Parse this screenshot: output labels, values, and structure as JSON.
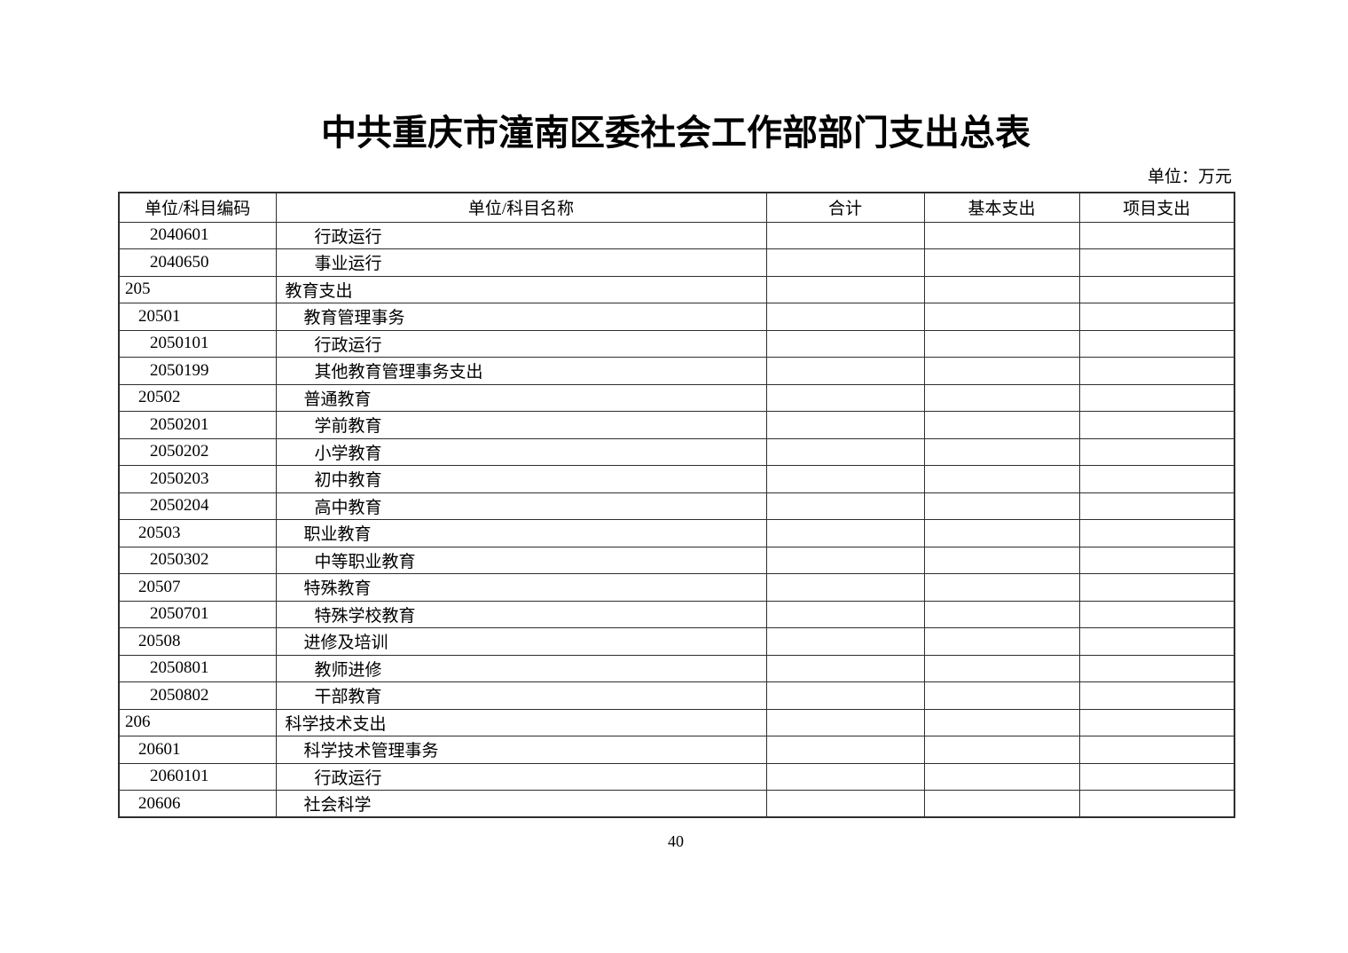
{
  "page": {
    "title": "中共重庆市潼南区委社会工作部部门支出总表",
    "unit_note": "单位：万元",
    "page_number": "40"
  },
  "colors": {
    "text": "#000000",
    "border": "#2e2e2e",
    "background": "#ffffff"
  },
  "table": {
    "columns": [
      {
        "label": "单位/科目编码"
      },
      {
        "label": "单位/科目名称"
      },
      {
        "label": "合计"
      },
      {
        "label": "基本支出"
      },
      {
        "label": "项目支出"
      }
    ],
    "rows": [
      {
        "code": "2040601",
        "name": "行政运行",
        "level": 3,
        "total": "",
        "basic": "",
        "project": ""
      },
      {
        "code": "2040650",
        "name": "事业运行",
        "level": 3,
        "total": "",
        "basic": "",
        "project": ""
      },
      {
        "code": "205",
        "name": "教育支出",
        "level": 1,
        "total": "",
        "basic": "",
        "project": ""
      },
      {
        "code": "20501",
        "name": "教育管理事务",
        "level": 2,
        "total": "",
        "basic": "",
        "project": ""
      },
      {
        "code": "2050101",
        "name": "行政运行",
        "level": 3,
        "total": "",
        "basic": "",
        "project": ""
      },
      {
        "code": "2050199",
        "name": "其他教育管理事务支出",
        "level": 3,
        "total": "",
        "basic": "",
        "project": ""
      },
      {
        "code": "20502",
        "name": "普通教育",
        "level": 2,
        "total": "",
        "basic": "",
        "project": ""
      },
      {
        "code": "2050201",
        "name": "学前教育",
        "level": 3,
        "total": "",
        "basic": "",
        "project": ""
      },
      {
        "code": "2050202",
        "name": "小学教育",
        "level": 3,
        "total": "",
        "basic": "",
        "project": ""
      },
      {
        "code": "2050203",
        "name": "初中教育",
        "level": 3,
        "total": "",
        "basic": "",
        "project": ""
      },
      {
        "code": "2050204",
        "name": "高中教育",
        "level": 3,
        "total": "",
        "basic": "",
        "project": ""
      },
      {
        "code": "20503",
        "name": "职业教育",
        "level": 2,
        "total": "",
        "basic": "",
        "project": ""
      },
      {
        "code": "2050302",
        "name": "中等职业教育",
        "level": 3,
        "total": "",
        "basic": "",
        "project": ""
      },
      {
        "code": "20507",
        "name": "特殊教育",
        "level": 2,
        "total": "",
        "basic": "",
        "project": ""
      },
      {
        "code": "2050701",
        "name": "特殊学校教育",
        "level": 3,
        "total": "",
        "basic": "",
        "project": ""
      },
      {
        "code": "20508",
        "name": "进修及培训",
        "level": 2,
        "total": "",
        "basic": "",
        "project": ""
      },
      {
        "code": "2050801",
        "name": "教师进修",
        "level": 3,
        "total": "",
        "basic": "",
        "project": ""
      },
      {
        "code": "2050802",
        "name": "干部教育",
        "level": 3,
        "total": "",
        "basic": "",
        "project": ""
      },
      {
        "code": "206",
        "name": "科学技术支出",
        "level": 1,
        "total": "",
        "basic": "",
        "project": ""
      },
      {
        "code": "20601",
        "name": "科学技术管理事务",
        "level": 2,
        "total": "",
        "basic": "",
        "project": ""
      },
      {
        "code": "2060101",
        "name": "行政运行",
        "level": 3,
        "total": "",
        "basic": "",
        "project": ""
      },
      {
        "code": "20606",
        "name": "社会科学",
        "level": 2,
        "total": "",
        "basic": "",
        "project": ""
      }
    ]
  }
}
